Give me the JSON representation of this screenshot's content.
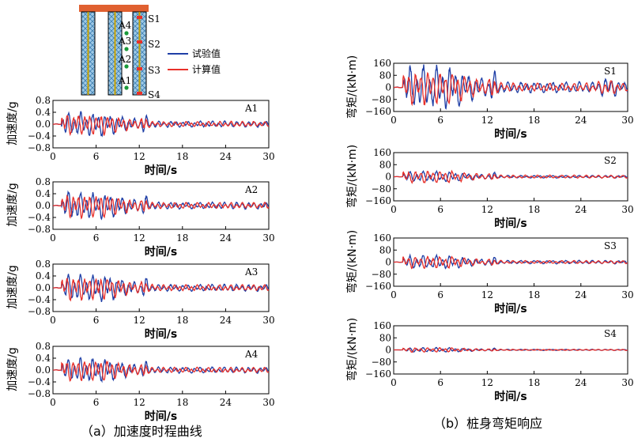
{
  "captions": {
    "a": "（a）加速度时程曲线",
    "b": "（b）桩身弯矩响应"
  },
  "legend": {
    "test": "试验值",
    "calc": "计算值"
  },
  "colors": {
    "test": "#1f3fa6",
    "calc": "#e8302a",
    "pile_cap": "#e06030",
    "accel_marker": "#1a9a3a",
    "strain_marker": "#e8302a",
    "pile_fill": "#9ec9e6"
  },
  "schematic": {
    "accel_labels": [
      "A4",
      "A3",
      "A2",
      "A1"
    ],
    "strain_labels": [
      "S1",
      "S2",
      "S3",
      "S4"
    ]
  },
  "chart_data": [
    {
      "type": "line",
      "id": "A1",
      "annotation": "A1",
      "xlabel": "时间/s",
      "ylabel": "加速度/g",
      "xlim": [
        0,
        30
      ],
      "ylim": [
        -0.8,
        0.8
      ],
      "xticks": [
        0,
        6,
        12,
        18,
        24,
        30
      ],
      "yticks": [
        "0.8",
        "0.4",
        "0.0",
        "−0.4",
        "−0.8"
      ],
      "ytick_values": [
        0.8,
        0.4,
        0.0,
        -0.4,
        -0.8
      ],
      "series": [
        {
          "name": "试验值",
          "peak": 0.4
        },
        {
          "name": "计算值",
          "peak": 0.35
        }
      ]
    },
    {
      "type": "line",
      "id": "A2",
      "annotation": "A2",
      "xlabel": "时间/s",
      "ylabel": "加速度/g",
      "xlim": [
        0,
        30
      ],
      "ylim": [
        -0.8,
        0.8
      ],
      "xticks": [
        0,
        6,
        12,
        18,
        24,
        30
      ],
      "yticks": [
        "0.8",
        "0.4",
        "0.0",
        "−0.4",
        "−0.8"
      ],
      "ytick_values": [
        0.8,
        0.4,
        0.0,
        -0.4,
        -0.8
      ],
      "series": [
        {
          "name": "试验值",
          "peak": 0.45
        },
        {
          "name": "计算值",
          "peak": 0.4
        }
      ]
    },
    {
      "type": "line",
      "id": "A3",
      "annotation": "A3",
      "xlabel": "时间/s",
      "ylabel": "加速度/g",
      "xlim": [
        0,
        30
      ],
      "ylim": [
        -0.8,
        0.8
      ],
      "xticks": [
        0,
        6,
        12,
        18,
        24,
        30
      ],
      "yticks": [
        "0.8",
        "0.4",
        "0.0",
        "−0.4",
        "−0.8"
      ],
      "ytick_values": [
        0.8,
        0.4,
        0.0,
        -0.4,
        -0.8
      ],
      "series": [
        {
          "name": "试验值",
          "peak": 0.45
        },
        {
          "name": "计算值",
          "peak": 0.4
        }
      ]
    },
    {
      "type": "line",
      "id": "A4",
      "annotation": "A4",
      "xlabel": "时间/s",
      "ylabel": "加速度/g",
      "xlim": [
        0,
        30
      ],
      "ylim": [
        -0.8,
        0.8
      ],
      "xticks": [
        0,
        6,
        12,
        18,
        24,
        30
      ],
      "yticks": [
        "0.8",
        "0.4",
        "0.0",
        "−0.4",
        "−0.8"
      ],
      "ytick_values": [
        0.8,
        0.4,
        0.0,
        -0.4,
        -0.8
      ],
      "series": [
        {
          "name": "试验值",
          "peak": 0.4
        },
        {
          "name": "计算值",
          "peak": 0.35
        }
      ]
    },
    {
      "type": "line",
      "id": "S1",
      "annotation": "S1",
      "xlabel": "时间/s",
      "ylabel": "弯矩/(kN·m)",
      "xlim": [
        0,
        30
      ],
      "ylim": [
        -160,
        160
      ],
      "xticks": [
        0,
        6,
        12,
        18,
        24,
        30
      ],
      "yticks": [
        "160",
        "80",
        "0",
        "−80",
        "−160"
      ],
      "ytick_values": [
        160,
        80,
        0,
        -80,
        -160
      ],
      "series": [
        {
          "name": "试验值",
          "peak": 140
        },
        {
          "name": "计算值",
          "peak": 110
        }
      ]
    },
    {
      "type": "line",
      "id": "S2",
      "annotation": "S2",
      "xlabel": "时间/s",
      "ylabel": "弯矩/(kN·m)",
      "xlim": [
        0,
        30
      ],
      "ylim": [
        -160,
        160
      ],
      "xticks": [
        0,
        6,
        12,
        18,
        24,
        30
      ],
      "yticks": [
        "160",
        "80",
        "0",
        "−80",
        "−160"
      ],
      "ytick_values": [
        160,
        80,
        0,
        -80,
        -160
      ],
      "series": [
        {
          "name": "试验值",
          "peak": 35
        },
        {
          "name": "计算值",
          "peak": 40
        }
      ]
    },
    {
      "type": "line",
      "id": "S3",
      "annotation": "S3",
      "xlabel": "时间/s",
      "ylabel": "弯矩/(kN·m)",
      "xlim": [
        0,
        30
      ],
      "ylim": [
        -160,
        160
      ],
      "xticks": [
        0,
        6,
        12,
        18,
        24,
        30
      ],
      "yticks": [
        "160",
        "80",
        "0",
        "−80",
        "−160"
      ],
      "ytick_values": [
        160,
        80,
        0,
        -80,
        -160
      ],
      "series": [
        {
          "name": "试验值",
          "peak": 45
        },
        {
          "name": "计算值",
          "peak": 40
        }
      ]
    },
    {
      "type": "line",
      "id": "S4",
      "annotation": "S4",
      "xlabel": "时间/s",
      "ylabel": "弯矩/(kN·m)",
      "xlim": [
        0,
        30
      ],
      "ylim": [
        -160,
        160
      ],
      "xticks": [
        0,
        6,
        12,
        18,
        24,
        30
      ],
      "yticks": [
        "160",
        "80",
        "0",
        "−80",
        "−160"
      ],
      "ytick_values": [
        160,
        80,
        0,
        -80,
        -160
      ],
      "series": [
        {
          "name": "试验值",
          "peak": 15
        },
        {
          "name": "计算值",
          "peak": 15
        }
      ]
    }
  ]
}
